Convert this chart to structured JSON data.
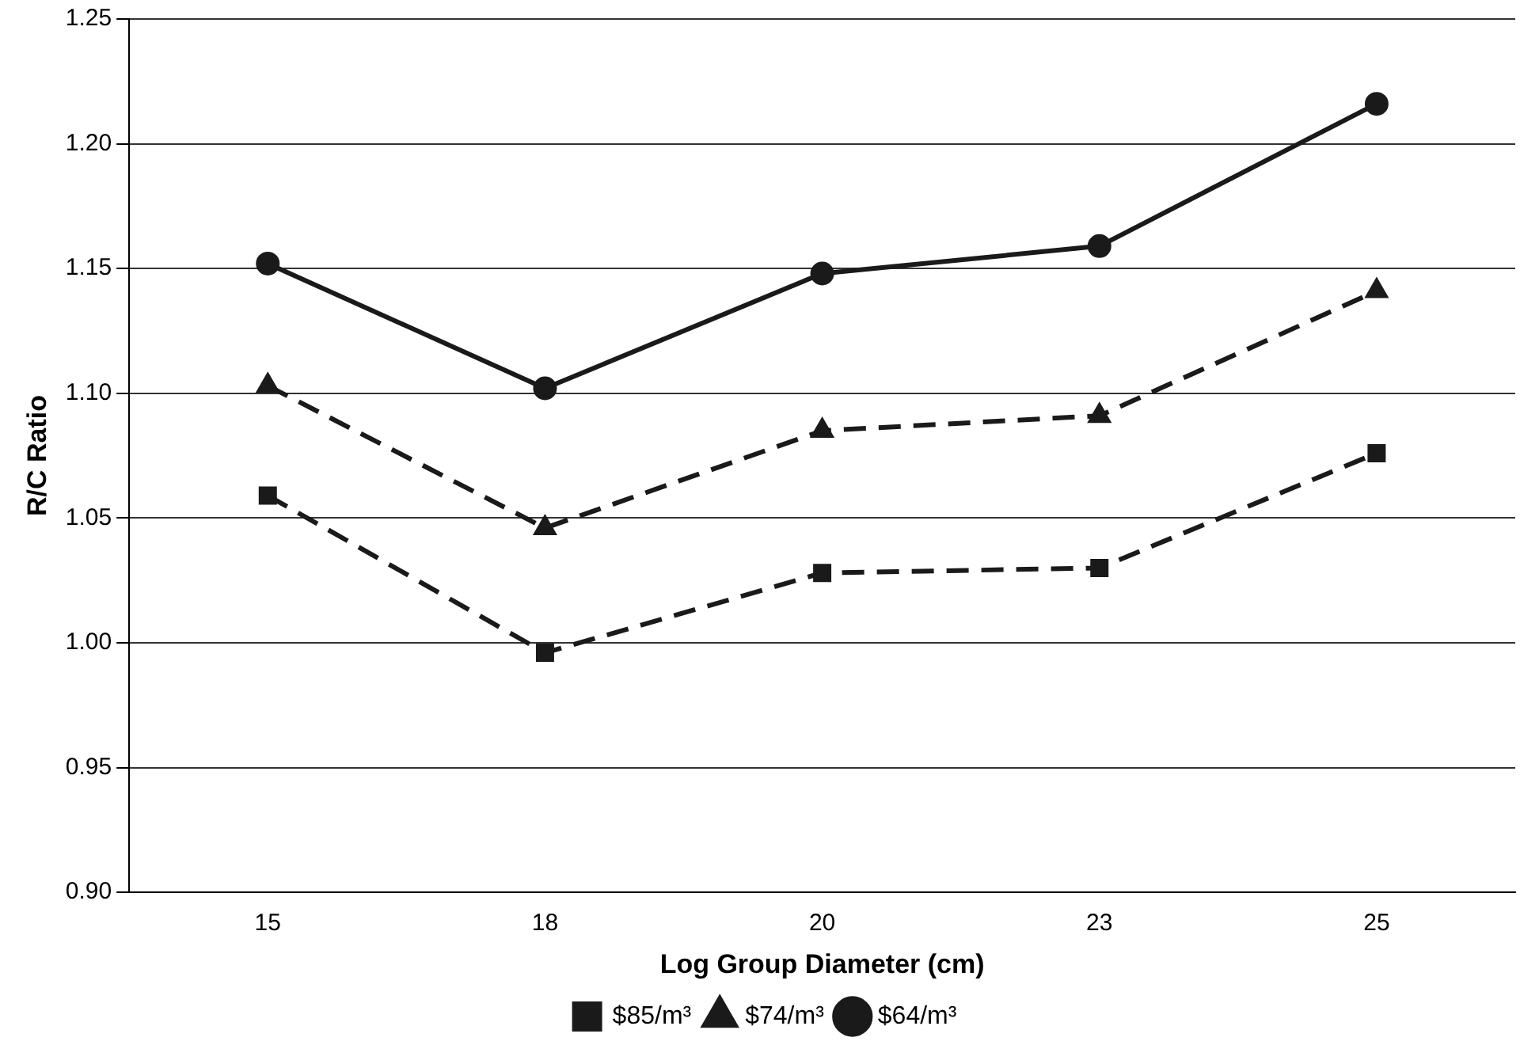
{
  "chart_data": {
    "type": "line",
    "xlabel": "Log Group Diameter (cm)",
    "ylabel": "R/C Ratio",
    "categories": [
      "15",
      "18",
      "20",
      "23",
      "25"
    ],
    "series": [
      {
        "name": "$85/m³",
        "color": "#1a1a1a",
        "marker": "square",
        "line_style": "dashed",
        "values": [
          1.059,
          0.996,
          1.028,
          1.03,
          1.076
        ]
      },
      {
        "name": "$74/m³",
        "color": "#1a1a1a",
        "marker": "triangle",
        "line_style": "dashed",
        "values": [
          1.103,
          1.046,
          1.085,
          1.091,
          1.141
        ]
      },
      {
        "name": "$64/m³",
        "color": "#1a1a1a",
        "marker": "circle",
        "line_style": "solid",
        "values": [
          1.152,
          1.102,
          1.148,
          1.159,
          1.216
        ]
      }
    ],
    "ylim": [
      0.9,
      1.25
    ],
    "yticks": [
      {
        "value": 0.9,
        "label": "0.90"
      },
      {
        "value": 0.95,
        "label": "0.95"
      },
      {
        "value": 1.0,
        "label": "1.00"
      },
      {
        "value": 1.05,
        "label": "1.05"
      },
      {
        "value": 1.1,
        "label": "1.10"
      },
      {
        "value": 1.15,
        "label": "1.15"
      },
      {
        "value": 1.2,
        "label": "1.20"
      },
      {
        "value": 1.25,
        "label": "1.25"
      }
    ],
    "grid": "y",
    "legend": "bottom"
  }
}
